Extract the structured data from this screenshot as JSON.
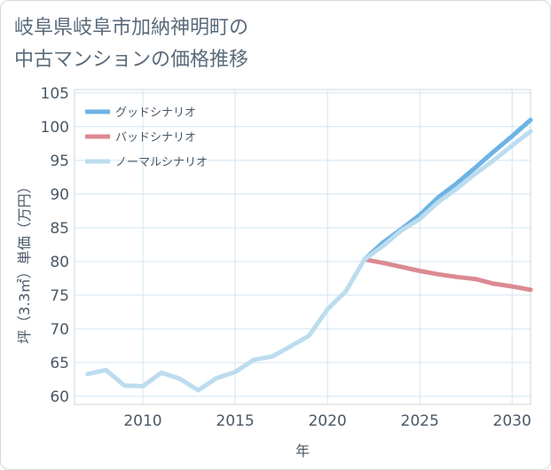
{
  "title_line1": "岐阜県岐阜市加納神明町の",
  "title_line2": "中古マンションの価格推移",
  "chart_data": {
    "type": "line",
    "xlabel": "年",
    "ylabel": "坪（3.3㎡）単価（万円）",
    "xlim": [
      2006.3,
      2031
    ],
    "ylim": [
      58.8,
      105.5
    ],
    "xticks": [
      2010,
      2015,
      2020,
      2025,
      2030
    ],
    "yticks": [
      60,
      65,
      70,
      75,
      80,
      85,
      90,
      95,
      100,
      105
    ],
    "grid": true,
    "legend_position": "top-left",
    "series": [
      {
        "name": "グッドシナリオ",
        "color": "#6db3e4",
        "x": [
          2022,
          2023,
          2024,
          2025,
          2026,
          2027,
          2028,
          2029,
          2030,
          2031
        ],
        "y": [
          80.3,
          82.8,
          84.8,
          86.9,
          89.5,
          91.6,
          93.9,
          96.3,
          98.6,
          101.0
        ]
      },
      {
        "name": "バッドシナリオ",
        "color": "#db8a92",
        "x": [
          2022,
          2023,
          2024,
          2025,
          2026,
          2027,
          2028,
          2029,
          2030,
          2031
        ],
        "y": [
          80.3,
          79.8,
          79.2,
          78.6,
          78.1,
          77.7,
          77.4,
          76.7,
          76.3,
          75.8
        ]
      },
      {
        "name": "ノーマルシナリオ",
        "color": "#bcdcef",
        "x": [
          2007,
          2008,
          2009,
          2010,
          2011,
          2012,
          2013,
          2014,
          2015,
          2016,
          2017,
          2018,
          2019,
          2020,
          2021,
          2022,
          2023,
          2024,
          2025,
          2026,
          2027,
          2028,
          2029,
          2030,
          2031
        ],
        "y": [
          63.3,
          63.9,
          61.6,
          61.5,
          63.5,
          62.6,
          60.9,
          62.7,
          63.6,
          65.4,
          65.9,
          67.4,
          69.0,
          72.9,
          75.6,
          80.3,
          82.3,
          84.6,
          86.3,
          88.8,
          90.8,
          93.0,
          95.0,
          97.2,
          99.3
        ]
      }
    ]
  }
}
